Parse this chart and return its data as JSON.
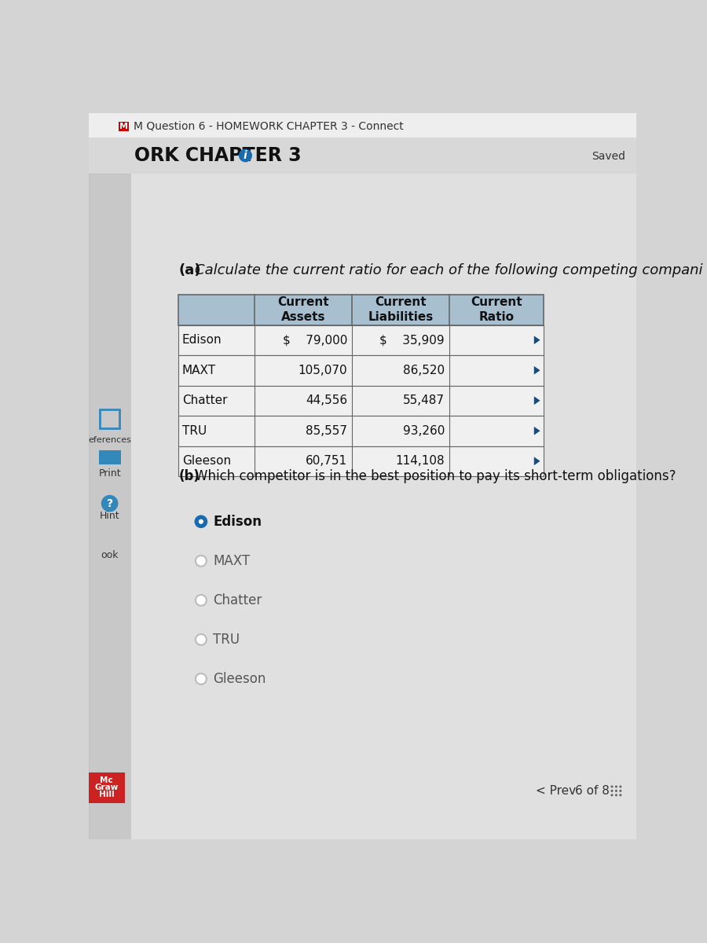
{
  "browser_tab_text": "M Question 6 - HOMEWORK CHAPTER 3 - Connect",
  "page_header": "ORK CHAPTER 3",
  "saved_text": "Saved",
  "part_a_label": "(a) Calculate the current ratio for each of the following competing compani",
  "table_headers": [
    "",
    "Current\nAssets",
    "Current\nLiabilities",
    "Current\nRatio"
  ],
  "companies": [
    "Edison",
    "MAXT",
    "Chatter",
    "TRU",
    "Gleeson"
  ],
  "current_assets": [
    "$    79,000",
    "105,070",
    "44,556",
    "85,557",
    "60,751"
  ],
  "current_assets_dollar": [
    true,
    false,
    false,
    false,
    false
  ],
  "current_liabilities": [
    "$    35,909",
    "86,520",
    "55,487",
    "93,260",
    "114,108"
  ],
  "current_liabilities_dollar": [
    true,
    false,
    false,
    false,
    false
  ],
  "part_b_label": "(b) Which competitor is in the best position to pay its short-term obligations?",
  "radio_options": [
    "Edison",
    "MAXT",
    "Chatter",
    "TRU",
    "Gleeson"
  ],
  "selected_option": "Edison",
  "bg_color": "#d4d4d4",
  "content_bg_color": "#e0e0e0",
  "table_header_bg": "#a8bfd0",
  "table_row_bg": "#f0f0f0",
  "table_border_color": "#666666",
  "tab_m_color": "#cc0000",
  "radio_selected_color": "#1a6ab0",
  "radio_unselected_color": "#bbbbbb",
  "sidebar_bg": "#c8c8c8",
  "hint_icon_color": "#3388bb",
  "mcgraw_red": "#cc2222"
}
